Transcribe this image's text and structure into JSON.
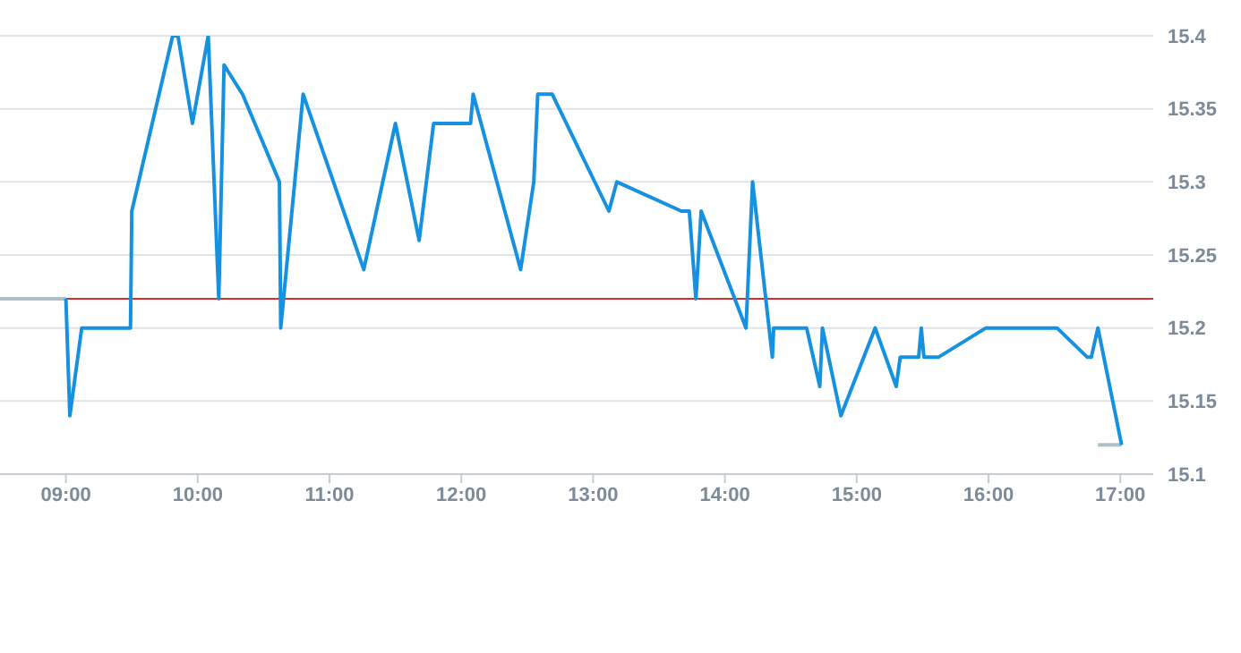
{
  "chart_data": {
    "type": "line",
    "xlim": [
      8.5,
      17.25
    ],
    "xticks": [
      {
        "value": 9,
        "label": "09:00"
      },
      {
        "value": 10,
        "label": "10:00"
      },
      {
        "value": 11,
        "label": "11:00"
      },
      {
        "value": 12,
        "label": "12:00"
      },
      {
        "value": 13,
        "label": "13:00"
      },
      {
        "value": 14,
        "label": "14:00"
      },
      {
        "value": 15,
        "label": "15:00"
      },
      {
        "value": 16,
        "label": "16:00"
      },
      {
        "value": 17,
        "label": "17:00"
      }
    ],
    "ylim": [
      15.1,
      15.4
    ],
    "yticks": [
      15.1,
      15.15,
      15.2,
      15.25,
      15.3,
      15.35,
      15.4
    ],
    "grid": "y",
    "marker": "none",
    "line_style": "solid",
    "ref_lines": [
      {
        "axis": "y",
        "value": 15.22,
        "color": "#d32f2f"
      }
    ],
    "series": [
      {
        "color": "#b0bec5",
        "x": [
          8.5,
          9.0
        ],
        "values": [
          15.22,
          15.22
        ]
      },
      {
        "color": "#b0bec5",
        "x": [
          16.83,
          17.01
        ],
        "values": [
          15.12,
          15.12
        ]
      },
      {
        "color": "#1591e0",
        "x": [
          9.0,
          9.03,
          9.12,
          9.49,
          9.5,
          9.81,
          9.85,
          9.96,
          10.08,
          10.16,
          10.2,
          10.34,
          10.62,
          10.63,
          10.8,
          11.26,
          11.5,
          11.68,
          11.79,
          12.07,
          12.09,
          12.45,
          12.55,
          12.58,
          12.69,
          13.12,
          13.18,
          13.67,
          13.73,
          13.78,
          13.82,
          14.16,
          14.21,
          14.36,
          14.37,
          14.6,
          14.62,
          14.72,
          14.74,
          14.88,
          15.14,
          15.3,
          15.33,
          15.47,
          15.49,
          15.51,
          15.62,
          15.98,
          16.52,
          16.75,
          16.78,
          16.83,
          17.01
        ],
        "values": [
          15.22,
          15.14,
          15.2,
          15.2,
          15.28,
          15.4,
          15.4,
          15.34,
          15.4,
          15.22,
          15.38,
          15.36,
          15.3,
          15.2,
          15.36,
          15.24,
          15.34,
          15.26,
          15.34,
          15.34,
          15.36,
          15.24,
          15.3,
          15.36,
          15.36,
          15.28,
          15.3,
          15.28,
          15.28,
          15.22,
          15.28,
          15.2,
          15.3,
          15.18,
          15.2,
          15.2,
          15.2,
          15.16,
          15.2,
          15.14,
          15.2,
          15.16,
          15.18,
          15.18,
          15.2,
          15.18,
          15.18,
          15.2,
          15.2,
          15.18,
          15.18,
          15.2,
          15.12
        ]
      }
    ]
  }
}
